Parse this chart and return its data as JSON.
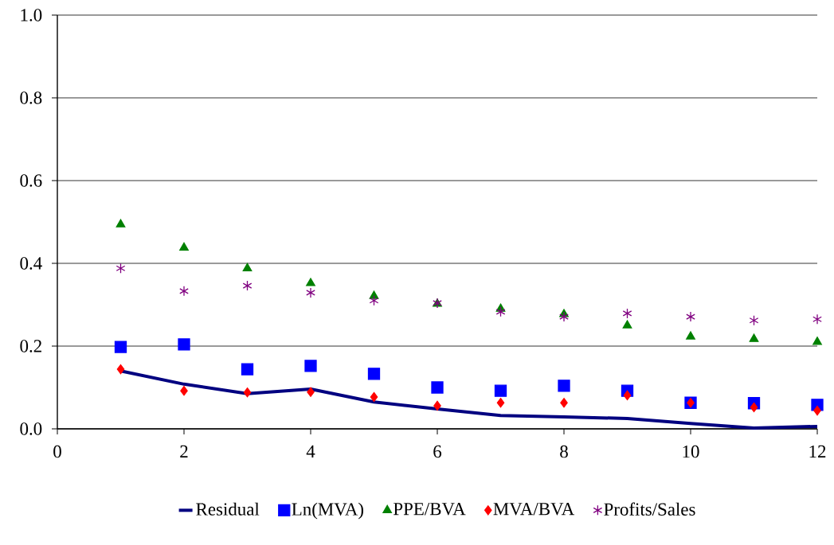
{
  "chart_data": {
    "type": "scatter",
    "x": [
      1,
      2,
      3,
      4,
      5,
      6,
      7,
      8,
      9,
      10,
      11,
      12
    ],
    "series": [
      {
        "name": "Residual",
        "type": "line",
        "marker": "none",
        "line_style": "solid",
        "color": "#000080",
        "values": [
          0.14,
          0.108,
          0.085,
          0.096,
          0.065,
          0.048,
          0.032,
          0.029,
          0.025,
          0.013,
          0.002,
          0.006
        ]
      },
      {
        "name": "Ln(MVA)",
        "marker": "square",
        "color": "#0000ff",
        "values": [
          0.198,
          0.204,
          0.144,
          0.152,
          0.133,
          0.1,
          0.092,
          0.104,
          0.092,
          0.063,
          0.062,
          0.058
        ]
      },
      {
        "name": "PPE/BVA",
        "marker": "triangle",
        "color": "#008000",
        "values": [
          0.494,
          0.438,
          0.388,
          0.352,
          0.321,
          0.302,
          0.29,
          0.277,
          0.25,
          0.223,
          0.217,
          0.21
        ]
      },
      {
        "name": "MVA/BVA",
        "marker": "diamond",
        "color": "#ff0000",
        "values": [
          0.144,
          0.092,
          0.088,
          0.089,
          0.077,
          0.056,
          0.063,
          0.063,
          0.081,
          0.063,
          0.052,
          0.044
        ]
      },
      {
        "name": "Profits/Sales",
        "marker": "cross",
        "color": "#800080",
        "values": [
          0.388,
          0.333,
          0.346,
          0.329,
          0.31,
          0.304,
          0.283,
          0.271,
          0.279,
          0.271,
          0.262,
          0.265
        ]
      }
    ],
    "xlim": [
      0,
      12
    ],
    "xticks": [
      0,
      2,
      4,
      6,
      8,
      10,
      12
    ],
    "ylim": [
      0,
      1
    ],
    "yticks": [
      {
        "value": 0,
        "label": "0.0"
      },
      0.2,
      0.4,
      0.6,
      0.8,
      {
        "value": 1,
        "label": "1.0"
      }
    ],
    "grid": "y",
    "legend": "bottom"
  }
}
